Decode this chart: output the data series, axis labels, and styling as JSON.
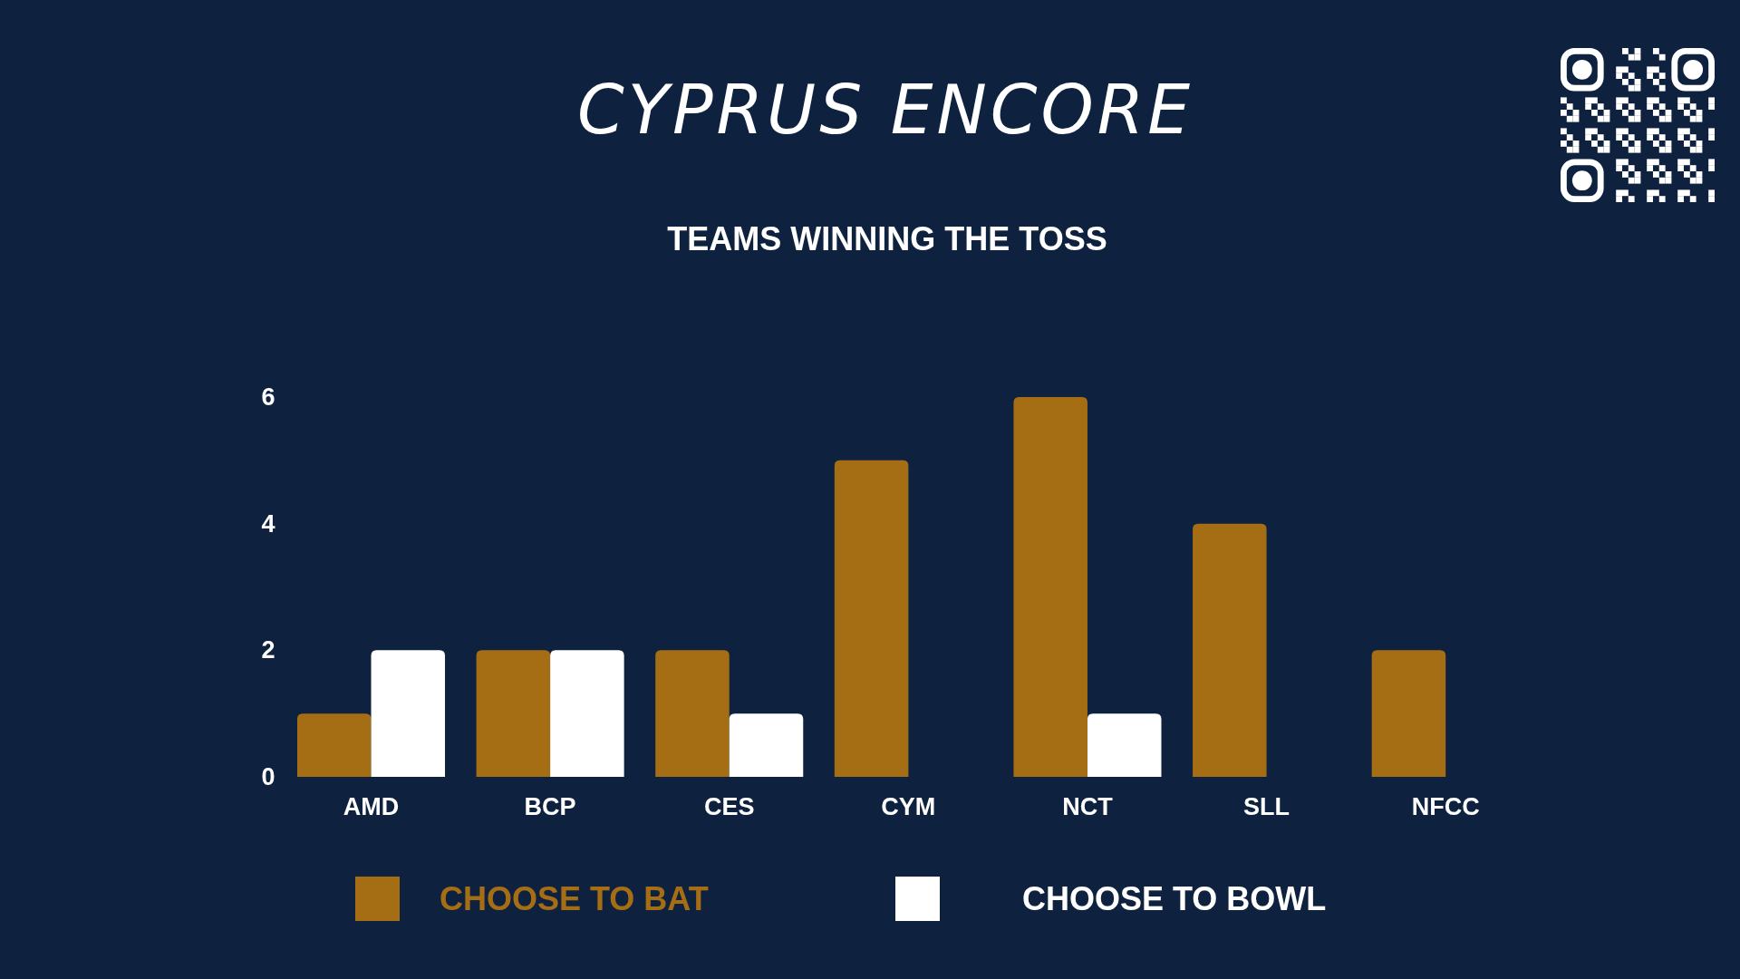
{
  "chart_data": {
    "type": "bar",
    "title": "CYPRUS ENCORE",
    "subtitle": "TEAMS WINNING THE TOSS",
    "categories": [
      "AMD",
      "BCP",
      "CES",
      "CYM",
      "NCT",
      "SLL",
      "NFCC"
    ],
    "series": [
      {
        "name": "CHOOSE TO BAT",
        "color": "#a66e14",
        "values": [
          1,
          2,
          2,
          5,
          6,
          4,
          2
        ]
      },
      {
        "name": "CHOOSE TO BOWL",
        "color": "#ffffff",
        "values": [
          2,
          2,
          1,
          0,
          1,
          0,
          0
        ]
      }
    ],
    "ylim": [
      0,
      6
    ],
    "yticks": [
      0,
      2,
      4,
      6
    ],
    "legend": "bottom"
  }
}
